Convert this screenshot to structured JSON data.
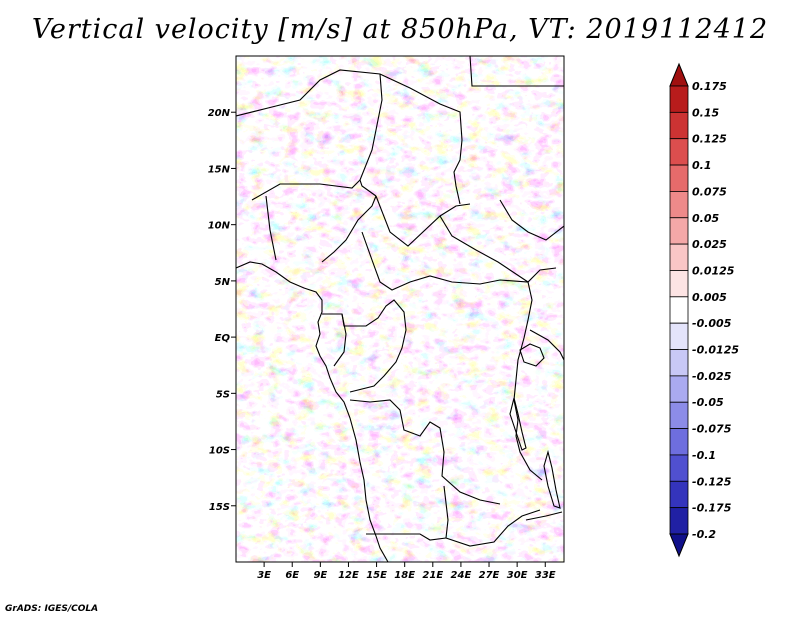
{
  "title": "Vertical velocity [m/s] at 850hPa, VT: 2019112412",
  "credit": "GrADS: IGES/COLA",
  "map": {
    "lon_range": [
      0,
      35
    ],
    "lat_range": [
      -20,
      25
    ],
    "lat_ticks": [
      {
        "value": 20,
        "label": "20N"
      },
      {
        "value": 15,
        "label": "15N"
      },
      {
        "value": 10,
        "label": "10N"
      },
      {
        "value": 5,
        "label": "5N"
      },
      {
        "value": 0,
        "label": "EQ"
      },
      {
        "value": -5,
        "label": "5S"
      },
      {
        "value": -10,
        "label": "10S"
      },
      {
        "value": -15,
        "label": "15S"
      }
    ],
    "lon_ticks": [
      {
        "value": 3,
        "label": "3E"
      },
      {
        "value": 6,
        "label": "6E"
      },
      {
        "value": 9,
        "label": "9E"
      },
      {
        "value": 12,
        "label": "12E"
      },
      {
        "value": 15,
        "label": "15E"
      },
      {
        "value": 18,
        "label": "18E"
      },
      {
        "value": 21,
        "label": "21E"
      },
      {
        "value": 24,
        "label": "24E"
      },
      {
        "value": 27,
        "label": "27E"
      },
      {
        "value": 30,
        "label": "30E"
      },
      {
        "value": 33,
        "label": "33E"
      }
    ]
  },
  "colorbar": {
    "labels": [
      "0.175",
      "0.15",
      "0.125",
      "0.1",
      "0.075",
      "0.05",
      "0.025",
      "0.0125",
      "0.005",
      "-0.005",
      "-0.0125",
      "-0.025",
      "-0.05",
      "-0.075",
      "-0.1",
      "-0.125",
      "-0.175",
      "-0.2"
    ],
    "colors": [
      "#a01010",
      "#b81c1c",
      "#cc3333",
      "#dc4e4e",
      "#e66b6b",
      "#ee8a8a",
      "#f4a8a8",
      "#f9c6c6",
      "#fde4e4",
      "#ffffff",
      "#e4e4fb",
      "#c8c8f6",
      "#aaaaf0",
      "#8c8ce8",
      "#6e6ede",
      "#5050d0",
      "#3434bc",
      "#2020a4",
      "#10108a"
    ]
  }
}
